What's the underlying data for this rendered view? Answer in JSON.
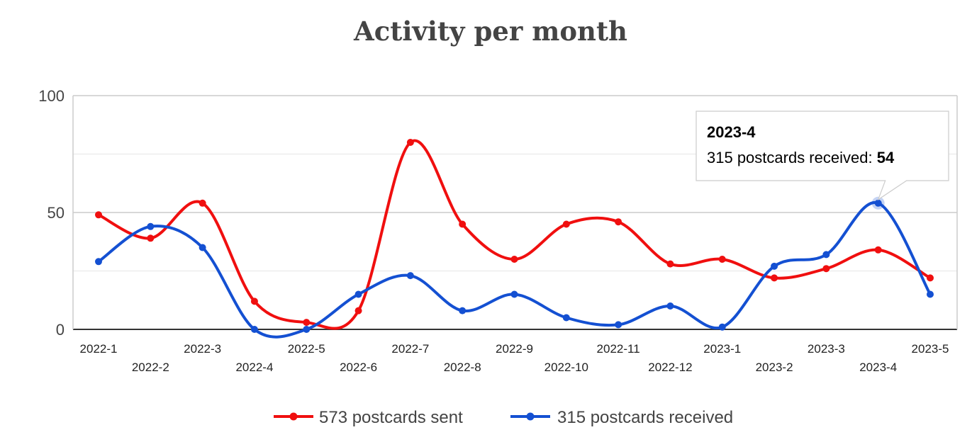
{
  "chart_data": {
    "type": "line",
    "title": "Activity per month",
    "categories": [
      "2022-1",
      "2022-2",
      "2022-3",
      "2022-4",
      "2022-5",
      "2022-6",
      "2022-7",
      "2022-8",
      "2022-9",
      "2022-10",
      "2022-11",
      "2022-12",
      "2023-1",
      "2023-2",
      "2023-3",
      "2023-4",
      "2023-5"
    ],
    "series": [
      {
        "name": "573 postcards sent",
        "color": "#f00f0f",
        "values": [
          49,
          39,
          54,
          12,
          3,
          8,
          80,
          45,
          30,
          45,
          46,
          28,
          30,
          22,
          26,
          34,
          22
        ]
      },
      {
        "name": "315 postcards received",
        "color": "#1450d2",
        "values": [
          29,
          44,
          35,
          0,
          0,
          15,
          23,
          8,
          15,
          5,
          2,
          10,
          1,
          27,
          32,
          54,
          15
        ]
      }
    ],
    "y_ticks": [
      "0",
      "50",
      "100"
    ],
    "ylim": [
      0,
      100
    ],
    "grid": true,
    "legend_position": "bottom",
    "tooltip": {
      "title": "2023-4",
      "label": "315 postcards received: ",
      "value": "54"
    }
  }
}
